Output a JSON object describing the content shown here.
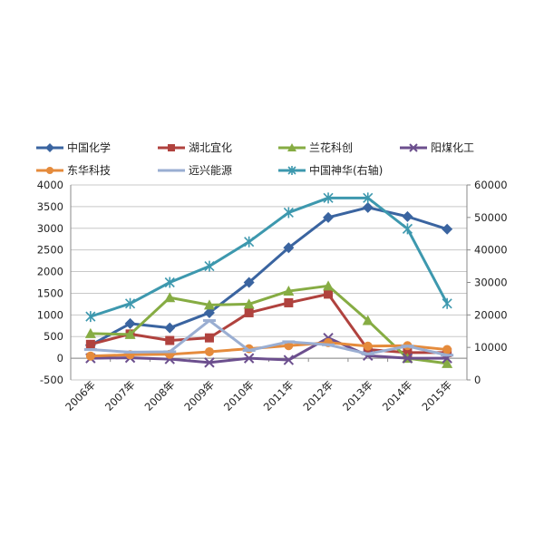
{
  "chart_data": {
    "type": "line",
    "title": "",
    "xlabel": "",
    "ylabel": "",
    "categories": [
      "2006年",
      "2007年",
      "2008年",
      "2009年",
      "2010年",
      "2011年",
      "2012年",
      "2013年",
      "2014年",
      "2015年"
    ],
    "ylim": [
      -500,
      4000
    ],
    "y2lim": [
      0,
      60000
    ],
    "y_ticks": [
      "-500",
      "0",
      "500",
      "1000",
      "1500",
      "2000",
      "2500",
      "3000",
      "3500",
      "4000"
    ],
    "y2_ticks": [
      "0",
      "10000",
      "20000",
      "30000",
      "40000",
      "50000",
      "60000"
    ],
    "grid": true,
    "legend_position": "top",
    "series": [
      {
        "name": "中国化学",
        "color": "#3A64A0",
        "marker": "diamond",
        "axis": "left",
        "values": [
          300,
          800,
          700,
          1050,
          1750,
          2550,
          3250,
          3480,
          3270,
          2980
        ]
      },
      {
        "name": "湖北宜化",
        "color": "#B0423E",
        "marker": "square",
        "axis": "left",
        "values": [
          320,
          560,
          410,
          470,
          1050,
          1280,
          1480,
          200,
          130,
          130
        ]
      },
      {
        "name": "兰花科创",
        "color": "#86AC43",
        "marker": "triangle",
        "axis": "left",
        "values": [
          570,
          550,
          1400,
          1230,
          1250,
          1550,
          1670,
          870,
          0,
          -120
        ]
      },
      {
        "name": "阳煤化工",
        "color": "#6C4F8E",
        "marker": "x",
        "axis": "left",
        "values": [
          0,
          10,
          -20,
          -100,
          0,
          -40,
          470,
          60,
          0,
          0
        ]
      },
      {
        "name": "东华科技",
        "color": "#E58B3C",
        "marker": "circle",
        "axis": "left",
        "values": [
          50,
          80,
          90,
          150,
          220,
          290,
          360,
          280,
          290,
          200
        ]
      },
      {
        "name": "远兴能源",
        "color": "#9AAED2",
        "marker": "dash",
        "axis": "left",
        "values": [
          200,
          140,
          150,
          870,
          180,
          380,
          310,
          100,
          280,
          70
        ]
      },
      {
        "name": "中国神华(右轴)",
        "color": "#3D98AE",
        "marker": "star",
        "axis": "right",
        "values": [
          19500,
          23500,
          30000,
          35000,
          42500,
          51500,
          56000,
          56000,
          46500,
          23500
        ]
      }
    ]
  }
}
